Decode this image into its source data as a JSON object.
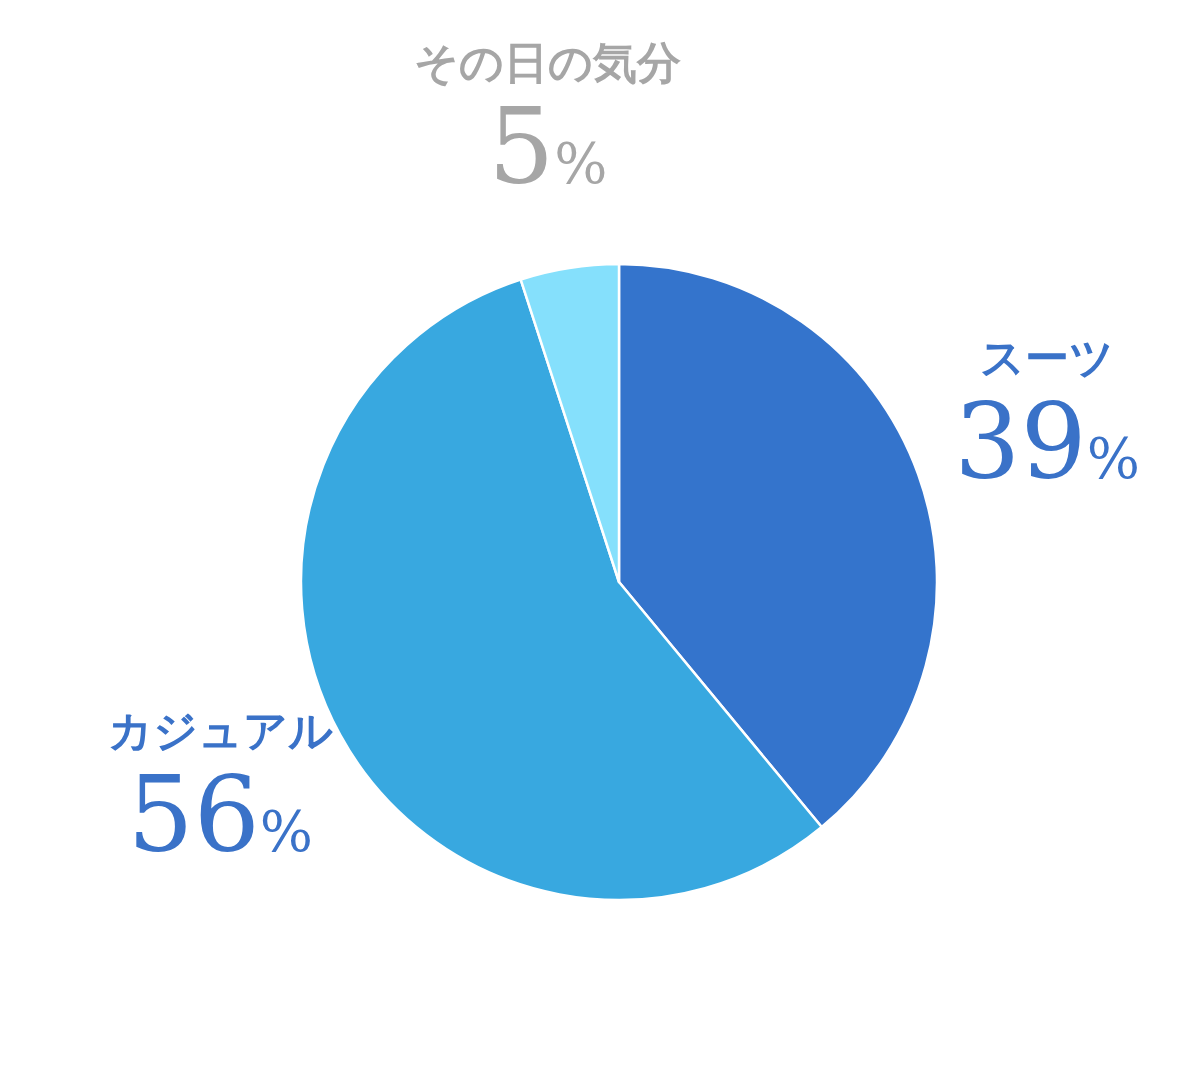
{
  "chart_data": {
    "type": "pie",
    "categories": [
      "スーツ",
      "カジュアル",
      "その日の気分"
    ],
    "values": [
      39,
      56,
      5
    ],
    "colors": [
      "#3474cc",
      "#38a8e0",
      "#85e0fc"
    ],
    "value_labels": [
      "39%",
      "56%",
      "5%"
    ]
  }
}
